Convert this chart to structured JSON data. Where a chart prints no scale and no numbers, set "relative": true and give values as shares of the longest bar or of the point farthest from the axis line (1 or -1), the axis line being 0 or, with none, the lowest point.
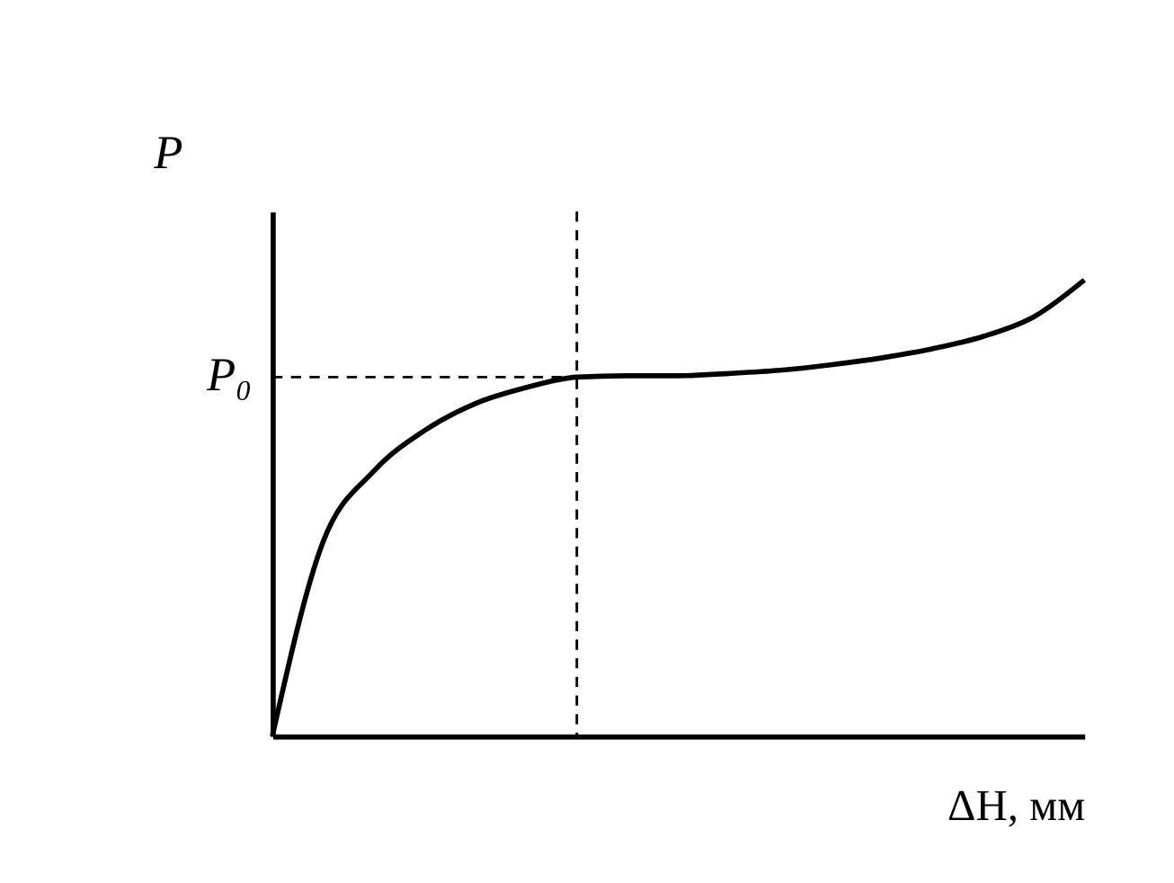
{
  "chart_data": {
    "type": "line",
    "relative": true,
    "xlabel": "ΔH, мм",
    "ylabel": "P",
    "categories": [
      null,
      null,
      null,
      null,
      null,
      null,
      null,
      null,
      null,
      null,
      null,
      null,
      null,
      null,
      null,
      null,
      null
    ],
    "series": [
      {
        "color": "#000000",
        "values": [
          0,
          0.426,
          0.581,
          0.67,
          0.729,
          0.764,
          0.787,
          0.79,
          0.79,
          0.795,
          0.802,
          0.814,
          0.829,
          0.849,
          0.876,
          0.919,
          1.0
        ]
      }
    ],
    "ref_lines": [
      {
        "axis": "y",
        "value": 0.787,
        "label": "P₀",
        "line_style": "dashed",
        "color": "#000000"
      }
    ],
    "grid": false,
    "marker": "none",
    "line_style": "solid"
  }
}
